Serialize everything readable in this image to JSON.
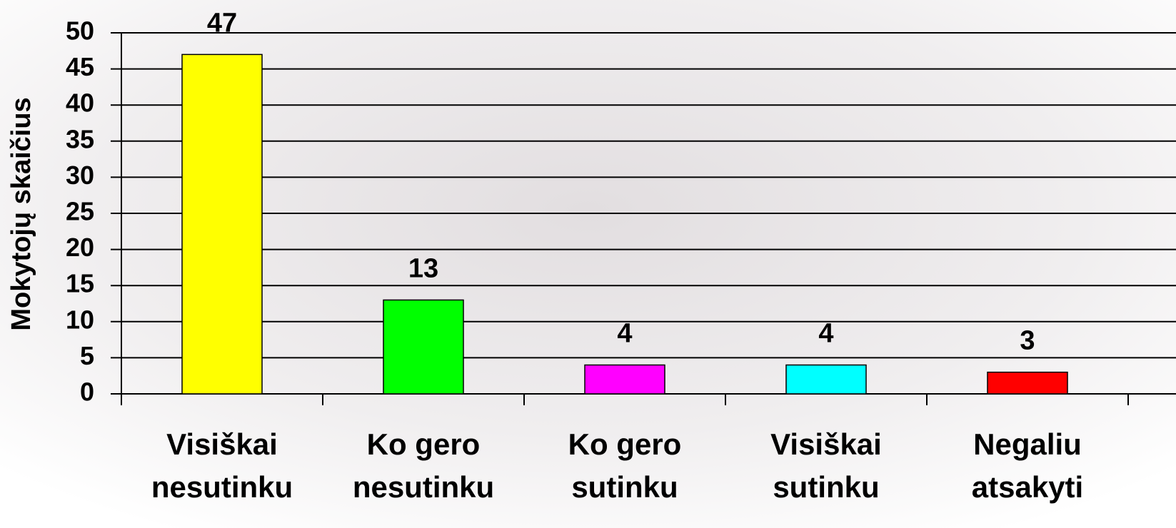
{
  "chart_data": {
    "type": "bar",
    "y_label": "Mokytojų skaičius",
    "categories": [
      [
        "Visiškai",
        "nesutinku"
      ],
      [
        "Ko gero",
        "nesutinku"
      ],
      [
        "Ko gero",
        "sutinku"
      ],
      [
        "Visiškai",
        "sutinku"
      ],
      [
        "Negaliu",
        "atsakyti"
      ]
    ],
    "values": [
      47,
      13,
      4,
      4,
      3
    ],
    "colors": [
      "#ffff00",
      "#00ff00",
      "#ff00ff",
      "#00ffff",
      "#ff0000"
    ],
    "ylim": [
      0,
      50
    ],
    "yticks": [
      0,
      5,
      10,
      15,
      20,
      25,
      30,
      35,
      40,
      45,
      50
    ],
    "grid": true
  }
}
